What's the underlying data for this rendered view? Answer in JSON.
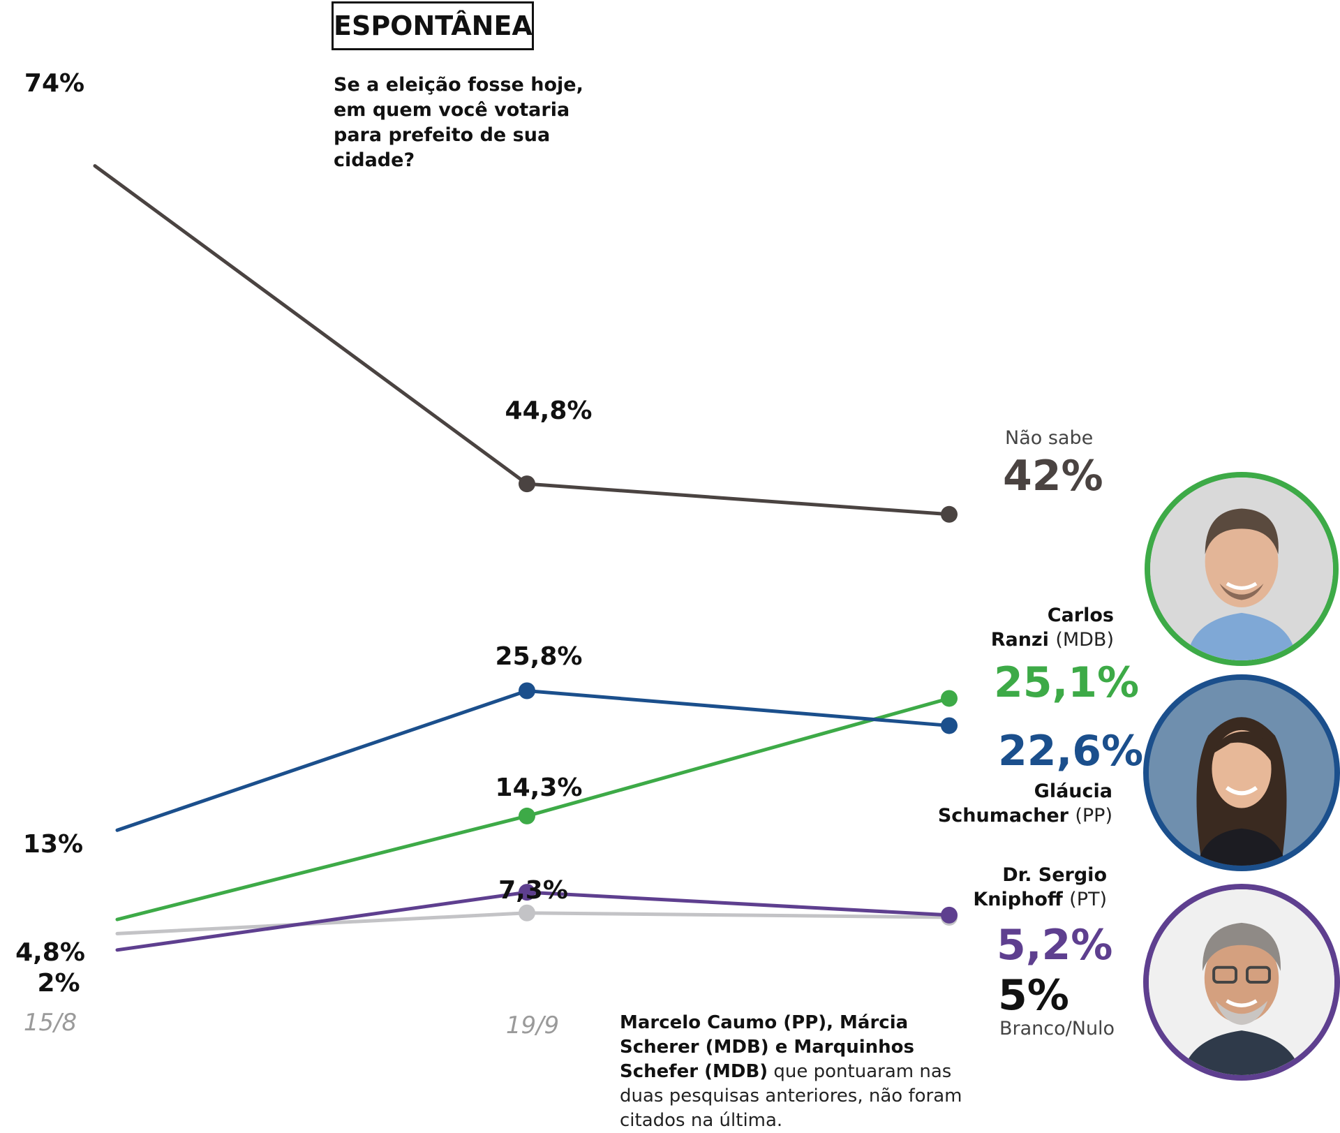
{
  "title": "ESPONTÂNEA",
  "question": "Se a eleição fosse hoje, em quem você votaria para prefeito de sua cidade?",
  "chart_data": {
    "type": "line",
    "x": [
      "15/8",
      "19/9",
      ""
    ],
    "series": [
      {
        "name": "Não sabe",
        "color": "#4a4341",
        "values": [
          74,
          44.8,
          42
        ],
        "labels": [
          "74%",
          "44,8%",
          "42%"
        ]
      },
      {
        "name": "Gláucia Schumacher (PP)",
        "color": "#1b4f8c",
        "values": [
          13,
          25.8,
          22.6
        ],
        "labels": [
          "13%",
          "25,8%",
          "22,6%"
        ]
      },
      {
        "name": "Carlos Ranzi (MDB)",
        "color": "#3daa47",
        "values": [
          4.8,
          14.3,
          25.1
        ],
        "labels": [
          "4,8%",
          "14,3%",
          "25,1%"
        ]
      },
      {
        "name": "Dr. Sergio Kniphoff (PT)",
        "color": "#5e3f8f",
        "values": [
          2,
          7.3,
          5.2
        ],
        "labels": [
          "2%",
          "7,3%",
          "5,2%"
        ]
      },
      {
        "name": "Branco/Nulo",
        "color": "#c3c3c6",
        "values": [
          3.5,
          5.4,
          5
        ],
        "labels": [
          "",
          "",
          "5%"
        ]
      }
    ]
  },
  "legend": {
    "nao_sabe": {
      "label": "Não sabe",
      "value": "42%"
    },
    "ranzi": {
      "name_line1": "Carlos",
      "name_line2": "Ranzi",
      "party": "(MDB)",
      "value": "25,1%"
    },
    "glaucia": {
      "name_line1": "Gláucia",
      "name_line2": "Schumacher",
      "party": "(PP)",
      "value": "22,6%"
    },
    "kniphoff": {
      "name_line1": "Dr. Sergio",
      "name_line2": "Kniphoff",
      "party": "(PT)",
      "value": "5,2%"
    },
    "branco": {
      "label": "Branco/Nulo",
      "value": "5%"
    }
  },
  "note": {
    "bold": "Marcelo Caumo (PP), Márcia Scherer (MDB) e Marquinhos Schefer (MDB)",
    "text": "que pontuaram nas duas pesquisas anteriores, não foram citados na última."
  },
  "colors": {
    "green": "#3daa47",
    "blue": "#1b4f8c",
    "purple": "#5e3f8f",
    "dark": "#4a4341",
    "gray": "#c3c3c6"
  },
  "icons": {
    "ranzi_photo": "man-portrait-icon",
    "glaucia_photo": "woman-portrait-icon",
    "kniphoff_photo": "man-glasses-portrait-icon"
  }
}
